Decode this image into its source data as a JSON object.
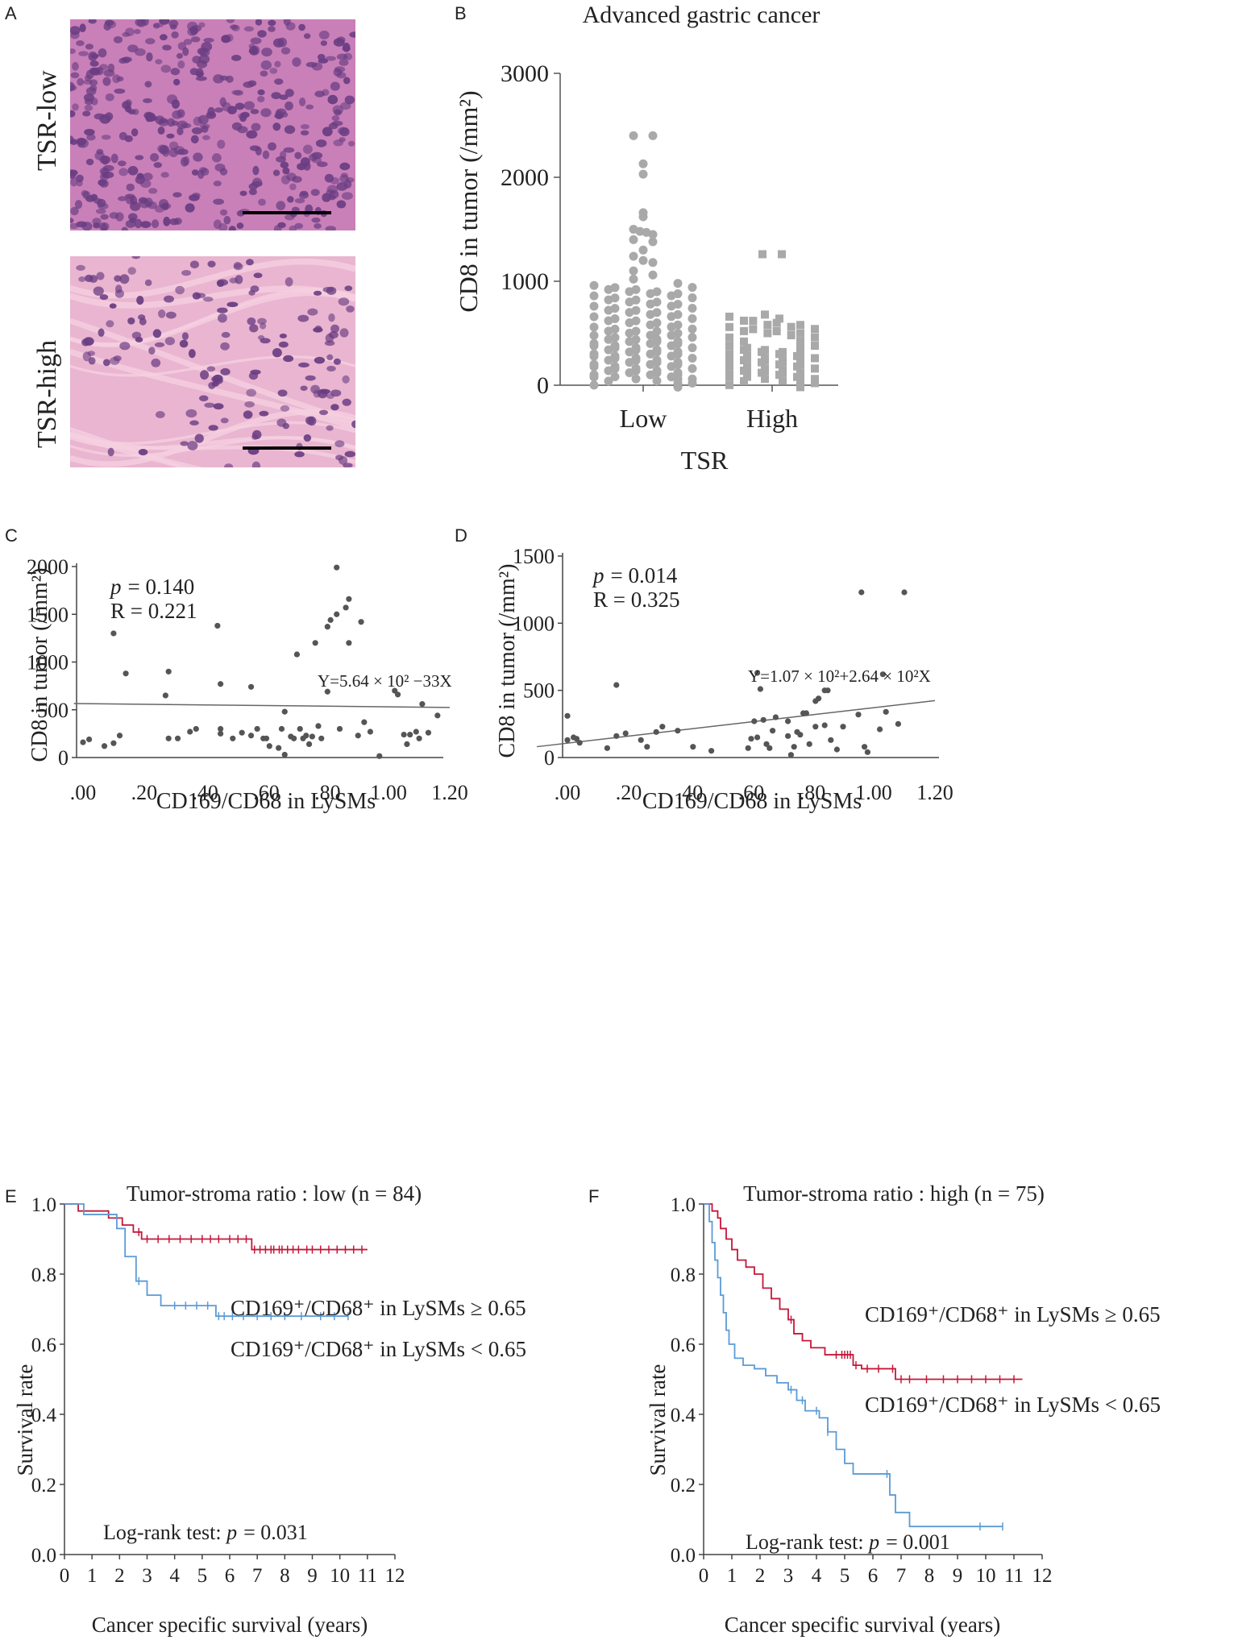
{
  "panels": {
    "A": {
      "letter": "A",
      "top_label": "TSR-low",
      "bottom_label": "TSR-high",
      "colors": {
        "stain_low": "#c980b8",
        "stain_high": "#e9b5d0",
        "nucleus": "#6a3d82",
        "scale_bar": "#000000"
      }
    },
    "B": {
      "letter": "B"
    },
    "C": {
      "letter": "C"
    },
    "D": {
      "letter": "D"
    },
    "E": {
      "letter": "E"
    },
    "F": {
      "letter": "F"
    }
  },
  "chart_data": [
    {
      "id": "B",
      "type": "scatter",
      "title": "Advanced gastric cancer",
      "xlabel": "TSR",
      "ylabel": "CD8 in tumor (/mm²)",
      "categories": [
        "Low",
        "High"
      ],
      "yticks": [
        0,
        1000,
        2000,
        3000
      ],
      "ylim": [
        0,
        3000
      ],
      "color": "#a9a9a9",
      "series": [
        {
          "name": "Low",
          "marker": "circle",
          "values": [
            2400,
            2400,
            2130,
            2030,
            1660,
            1620,
            1500,
            1480,
            1470,
            1450,
            1400,
            1380,
            1300,
            1240,
            1200,
            1180,
            1100,
            1060,
            1020,
            960,
            940,
            920,
            900,
            880,
            860,
            840,
            820,
            800,
            780,
            760,
            740,
            720,
            700,
            680,
            660,
            640,
            620,
            600,
            580,
            560,
            540,
            520,
            500,
            480,
            460,
            440,
            420,
            400,
            380,
            360,
            340,
            320,
            300,
            280,
            260,
            240,
            220,
            200,
            180,
            160,
            140,
            120,
            100,
            80,
            60,
            40,
            20
          ]
        },
        {
          "name": "High",
          "marker": "square",
          "values": [
            1260,
            1260,
            660,
            640,
            600,
            580,
            560,
            540,
            520,
            500,
            460,
            420,
            380,
            340,
            320,
            300,
            280,
            260,
            240,
            220,
            200,
            180,
            160,
            140,
            120,
            100,
            80,
            60,
            40,
            20
          ]
        }
      ]
    },
    {
      "id": "C",
      "type": "scatter",
      "xlabel": "CD169/CD68 in LySMs",
      "ylabel": "CD8 in tumor (/mm²)",
      "xticks": [
        ".00",
        ".20",
        ".40",
        ".60",
        ".80",
        "1.00",
        "1.20"
      ],
      "yticks": [
        0,
        500,
        1000,
        1500,
        2000
      ],
      "xlim": [
        0,
        1.2
      ],
      "ylim": [
        0,
        2000
      ],
      "stats": {
        "p_label": "p",
        "p_value": "= 0.140",
        "r_text": "R = 0.221"
      },
      "equation": "Y=5.64 × 10² −33X",
      "fit": {
        "intercept": 564,
        "slope": -33
      },
      "points": [
        [
          0.0,
          160
        ],
        [
          0.02,
          190
        ],
        [
          0.07,
          120
        ],
        [
          0.1,
          1300
        ],
        [
          0.1,
          150
        ],
        [
          0.12,
          230
        ],
        [
          0.14,
          880
        ],
        [
          0.27,
          650
        ],
        [
          0.28,
          900
        ],
        [
          0.28,
          200
        ],
        [
          0.31,
          200
        ],
        [
          0.35,
          270
        ],
        [
          0.37,
          300
        ],
        [
          0.44,
          1380
        ],
        [
          0.45,
          770
        ],
        [
          0.45,
          250
        ],
        [
          0.45,
          300
        ],
        [
          0.49,
          200
        ],
        [
          0.52,
          260
        ],
        [
          0.55,
          740
        ],
        [
          0.55,
          230
        ],
        [
          0.57,
          300
        ],
        [
          0.59,
          200
        ],
        [
          0.6,
          200
        ],
        [
          0.61,
          120
        ],
        [
          0.64,
          100
        ],
        [
          0.65,
          300
        ],
        [
          0.66,
          480
        ],
        [
          0.66,
          30
        ],
        [
          0.68,
          220
        ],
        [
          0.69,
          200
        ],
        [
          0.7,
          1080
        ],
        [
          0.71,
          300
        ],
        [
          0.72,
          200
        ],
        [
          0.73,
          230
        ],
        [
          0.74,
          140
        ],
        [
          0.75,
          220
        ],
        [
          0.76,
          1200
        ],
        [
          0.77,
          330
        ],
        [
          0.78,
          200
        ],
        [
          0.8,
          690
        ],
        [
          0.8,
          1370
        ],
        [
          0.81,
          1440
        ],
        [
          0.83,
          1990
        ],
        [
          0.83,
          1500
        ],
        [
          0.84,
          300
        ],
        [
          0.86,
          1570
        ],
        [
          0.87,
          1660
        ],
        [
          0.87,
          1200
        ],
        [
          0.9,
          230
        ],
        [
          0.91,
          1420
        ],
        [
          0.92,
          370
        ],
        [
          0.94,
          270
        ],
        [
          0.97,
          15
        ],
        [
          1.02,
          700
        ],
        [
          1.03,
          660
        ],
        [
          1.05,
          240
        ],
        [
          1.06,
          140
        ],
        [
          1.07,
          240
        ],
        [
          1.09,
          270
        ],
        [
          1.1,
          200
        ],
        [
          1.11,
          560
        ],
        [
          1.13,
          260
        ],
        [
          1.16,
          440
        ]
      ]
    },
    {
      "id": "D",
      "type": "scatter",
      "xlabel": "CD169/CD68 in LySMs",
      "ylabel": "CD8 in tumor (/mm²)",
      "xticks": [
        ".00",
        ".20",
        ".40",
        ".60",
        ".80",
        "1.00",
        "1.20"
      ],
      "yticks": [
        0,
        500,
        1000,
        1500
      ],
      "xlim": [
        0,
        1.2
      ],
      "ylim": [
        0,
        1500
      ],
      "stats": {
        "p_label": "p",
        "p_value": "= 0.014",
        "r_text": "R = 0.325"
      },
      "equation": "Y=1.07 × 10²+2.64 × 10²X",
      "fit": {
        "intercept": 107,
        "slope": 264
      },
      "points": [
        [
          0.0,
          310
        ],
        [
          0.0,
          130
        ],
        [
          0.02,
          150
        ],
        [
          0.03,
          140
        ],
        [
          0.04,
          110
        ],
        [
          0.13,
          70
        ],
        [
          0.16,
          540
        ],
        [
          0.16,
          160
        ],
        [
          0.19,
          180
        ],
        [
          0.24,
          130
        ],
        [
          0.26,
          80
        ],
        [
          0.29,
          190
        ],
        [
          0.31,
          230
        ],
        [
          0.36,
          200
        ],
        [
          0.41,
          80
        ],
        [
          0.47,
          50
        ],
        [
          0.59,
          70
        ],
        [
          0.6,
          140
        ],
        [
          0.61,
          270
        ],
        [
          0.62,
          150
        ],
        [
          0.62,
          630
        ],
        [
          0.63,
          510
        ],
        [
          0.64,
          280
        ],
        [
          0.65,
          100
        ],
        [
          0.66,
          70
        ],
        [
          0.67,
          200
        ],
        [
          0.68,
          300
        ],
        [
          0.72,
          270
        ],
        [
          0.72,
          160
        ],
        [
          0.73,
          20
        ],
        [
          0.74,
          80
        ],
        [
          0.75,
          190
        ],
        [
          0.76,
          170
        ],
        [
          0.77,
          330
        ],
        [
          0.78,
          330
        ],
        [
          0.79,
          100
        ],
        [
          0.81,
          230
        ],
        [
          0.81,
          420
        ],
        [
          0.82,
          440
        ],
        [
          0.84,
          500
        ],
        [
          0.84,
          240
        ],
        [
          0.85,
          500
        ],
        [
          0.86,
          130
        ],
        [
          0.88,
          60
        ],
        [
          0.9,
          230
        ],
        [
          0.95,
          320
        ],
        [
          0.96,
          1230
        ],
        [
          0.97,
          80
        ],
        [
          0.98,
          40
        ],
        [
          1.02,
          210
        ],
        [
          1.03,
          620
        ],
        [
          1.04,
          340
        ],
        [
          1.08,
          250
        ],
        [
          1.1,
          1230
        ]
      ]
    },
    {
      "id": "E",
      "type": "line",
      "title": "Tumor-stroma ratio : low (n = 84)",
      "xlabel": "Cancer specific survival (years)",
      "ylabel": "Survival rate",
      "xticks": [
        0,
        1,
        2,
        3,
        4,
        5,
        6,
        7,
        8,
        9,
        10,
        11,
        12
      ],
      "yticks": [
        "0.0",
        "0.2",
        "0.4",
        "0.6",
        "0.8",
        "1.0"
      ],
      "xlim": [
        0,
        12
      ],
      "ylim": [
        0,
        1
      ],
      "logrank": {
        "prefix": "Log-rank test: ",
        "p_label": "p",
        "p_value": "= 0.031"
      },
      "series": [
        {
          "name": "CD169⁺/CD68⁺ in LySMs ≥ 0.65",
          "color": "#c4173a",
          "steps": [
            [
              0,
              1.0
            ],
            [
              0.5,
              0.98
            ],
            [
              1.6,
              0.96
            ],
            [
              2.1,
              0.94
            ],
            [
              2.5,
              0.92
            ],
            [
              2.8,
              0.9
            ],
            [
              6.8,
              0.87
            ],
            [
              11,
              0.87
            ]
          ],
          "censor_x": [
            2.7,
            3.0,
            3.4,
            3.8,
            4.2,
            4.6,
            5.0,
            5.3,
            5.6,
            6.0,
            6.3,
            6.6,
            6.9,
            7.1,
            7.3,
            7.5,
            7.6,
            7.8,
            7.9,
            8.1,
            8.3,
            8.5,
            8.8,
            9.0,
            9.3,
            9.6,
            9.9,
            10.2,
            10.5,
            10.8
          ]
        },
        {
          "name": "CD169⁺/CD68⁺ in LySMs < 0.65",
          "color": "#5b9bd5",
          "steps": [
            [
              0,
              1.0
            ],
            [
              0.7,
              0.97
            ],
            [
              1.9,
              0.93
            ],
            [
              2.2,
              0.85
            ],
            [
              2.6,
              0.78
            ],
            [
              3.0,
              0.74
            ],
            [
              3.5,
              0.71
            ],
            [
              5.5,
              0.68
            ],
            [
              10.3,
              0.68
            ]
          ],
          "censor_x": [
            2.7,
            4.0,
            4.4,
            4.8,
            5.2,
            5.6,
            5.8,
            6.1,
            6.5,
            7.0,
            7.5,
            8.0,
            8.6,
            9.3,
            9.8,
            10.3
          ]
        }
      ]
    },
    {
      "id": "F",
      "type": "line",
      "title": "Tumor-stroma ratio : high (n = 75)",
      "xlabel": "Cancer specific survival (years)",
      "ylabel": "Survival rate",
      "xticks": [
        0,
        1,
        2,
        3,
        4,
        5,
        6,
        7,
        8,
        9,
        10,
        11,
        12
      ],
      "yticks": [
        "0.0",
        "0.2",
        "0.4",
        "0.6",
        "0.8",
        "1.0"
      ],
      "xlim": [
        0,
        12
      ],
      "ylim": [
        0,
        1
      ],
      "logrank": {
        "prefix": "Log-rank test: ",
        "p_label": "p",
        "p_value": "= 0.001"
      },
      "series": [
        {
          "name": "CD169⁺/CD68⁺ in LySMs ≥ 0.65",
          "color": "#c4173a",
          "steps": [
            [
              0,
              1.0
            ],
            [
              0.3,
              0.98
            ],
            [
              0.5,
              0.96
            ],
            [
              0.6,
              0.93
            ],
            [
              0.8,
              0.9
            ],
            [
              1.0,
              0.87
            ],
            [
              1.2,
              0.84
            ],
            [
              1.5,
              0.82
            ],
            [
              1.8,
              0.8
            ],
            [
              2.1,
              0.76
            ],
            [
              2.4,
              0.73
            ],
            [
              2.7,
              0.7
            ],
            [
              3.0,
              0.67
            ],
            [
              3.2,
              0.63
            ],
            [
              3.5,
              0.61
            ],
            [
              3.8,
              0.59
            ],
            [
              4.3,
              0.57
            ],
            [
              5.3,
              0.54
            ],
            [
              5.6,
              0.53
            ],
            [
              6.8,
              0.5
            ],
            [
              11.3,
              0.5
            ]
          ],
          "censor_x": [
            3.1,
            4.7,
            4.9,
            5.0,
            5.1,
            5.2,
            5.4,
            5.8,
            6.2,
            6.7,
            7.0,
            7.3,
            7.9,
            8.5,
            9.0,
            9.5,
            10.0,
            10.5,
            11.0
          ]
        },
        {
          "name": "CD169⁺/CD68⁺ in LySMs < 0.65",
          "color": "#5b9bd5",
          "steps": [
            [
              0,
              1.0
            ],
            [
              0.2,
              0.95
            ],
            [
              0.3,
              0.89
            ],
            [
              0.4,
              0.84
            ],
            [
              0.5,
              0.79
            ],
            [
              0.6,
              0.74
            ],
            [
              0.7,
              0.69
            ],
            [
              0.8,
              0.64
            ],
            [
              0.9,
              0.6
            ],
            [
              1.1,
              0.56
            ],
            [
              1.4,
              0.54
            ],
            [
              1.8,
              0.53
            ],
            [
              2.2,
              0.51
            ],
            [
              2.6,
              0.49
            ],
            [
              3.0,
              0.47
            ],
            [
              3.3,
              0.44
            ],
            [
              3.6,
              0.41
            ],
            [
              4.1,
              0.39
            ],
            [
              4.4,
              0.35
            ],
            [
              4.7,
              0.3
            ],
            [
              5.0,
              0.26
            ],
            [
              5.3,
              0.23
            ],
            [
              6.6,
              0.17
            ],
            [
              6.8,
              0.12
            ],
            [
              7.3,
              0.08
            ],
            [
              10.6,
              0.08
            ]
          ],
          "censor_x": [
            3.1,
            3.5,
            4.0,
            4.4,
            6.5,
            9.8,
            10.6
          ]
        }
      ]
    }
  ],
  "legend_positions_note": "legend entries placed inside plots, right side"
}
